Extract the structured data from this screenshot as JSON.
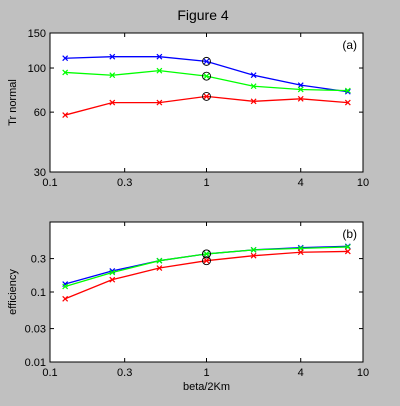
{
  "figure": {
    "title": "Figure 4",
    "background": "#c0c0c0"
  },
  "chart_data": [
    {
      "type": "line",
      "panel_label": "(a)",
      "xscale": "log",
      "yscale": "log",
      "xlim": [
        0.1,
        10
      ],
      "ylim": [
        30,
        150
      ],
      "xticks": [
        0.1,
        0.3,
        1,
        4,
        10
      ],
      "xtick_labels": [
        "0.1",
        "0.3",
        "1",
        "4",
        "10"
      ],
      "yticks": [
        30,
        60,
        100,
        150
      ],
      "ytick_labels": [
        "30",
        "60",
        "100",
        "150"
      ],
      "xlabel": "",
      "ylabel": "Tr normal",
      "x": [
        0.125,
        0.25,
        0.5,
        1,
        2,
        4,
        8
      ],
      "series": [
        {
          "color": "#0000ff",
          "values": [
            112,
            114,
            114,
            108,
            92,
            82,
            76
          ]
        },
        {
          "color": "#00ff00",
          "values": [
            95,
            92,
            97,
            91,
            81,
            78,
            77
          ]
        },
        {
          "color": "#ff0000",
          "values": [
            58,
            67,
            67,
            72,
            68,
            70,
            67
          ]
        }
      ],
      "circled_x": 1,
      "grid": false
    },
    {
      "type": "line",
      "panel_label": "(b)",
      "xscale": "log",
      "yscale": "log",
      "xlim": [
        0.1,
        10
      ],
      "ylim": [
        0.01,
        1
      ],
      "xticks": [
        0.1,
        0.3,
        1,
        4,
        10
      ],
      "xtick_labels": [
        "0.1",
        "0.3",
        "1",
        "4",
        "10"
      ],
      "yticks": [
        0.01,
        0.03,
        0.1,
        0.3
      ],
      "ytick_labels": [
        "0.01",
        "0.03",
        "0.1",
        "0.3"
      ],
      "xlabel": "beta/2Km",
      "ylabel": "efficiency",
      "x": [
        0.125,
        0.25,
        0.5,
        1,
        2,
        4,
        8
      ],
      "series": [
        {
          "color": "#0000ff",
          "values": [
            0.13,
            0.2,
            0.28,
            0.35,
            0.4,
            0.43,
            0.45
          ]
        },
        {
          "color": "#00ff00",
          "values": [
            0.12,
            0.19,
            0.28,
            0.35,
            0.4,
            0.42,
            0.44
          ]
        },
        {
          "color": "#ff0000",
          "values": [
            0.08,
            0.15,
            0.22,
            0.28,
            0.33,
            0.37,
            0.38
          ]
        }
      ],
      "circled_x": 1,
      "grid": false
    }
  ]
}
